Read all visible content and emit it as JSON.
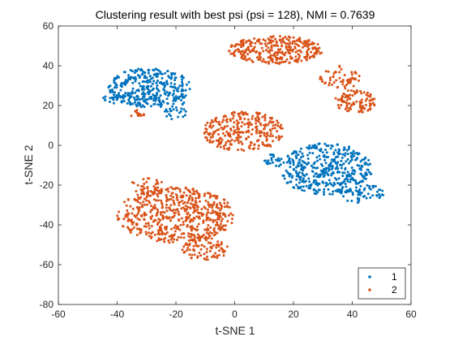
{
  "chart_data": {
    "type": "scatter",
    "title": "Clustering result with best psi (psi = 128), NMI = 0.7639",
    "xlabel": "t-SNE 1",
    "ylabel": "t-SNE 2",
    "xlim": [
      -60,
      60
    ],
    "ylim": [
      -80,
      60
    ],
    "xticks": [
      "-60",
      "-40",
      "-20",
      "0",
      "20",
      "40",
      "60"
    ],
    "yticks": [
      "-80",
      "-60",
      "-40",
      "-20",
      "0",
      "20",
      "40",
      "60"
    ],
    "grid": false,
    "legend_position": "bottom-right",
    "series": [
      {
        "name": "1",
        "color": "#0072BD",
        "clusters": [
          {
            "cx": -29,
            "cy": 29,
            "rx": 14,
            "ry": 10,
            "n": 340
          },
          {
            "cx": -20,
            "cy": 18,
            "rx": 4,
            "ry": 6,
            "n": 30
          },
          {
            "cx": -41,
            "cy": 24,
            "rx": 4,
            "ry": 3,
            "n": 20
          },
          {
            "cx": 31,
            "cy": -12,
            "rx": 16,
            "ry": 13,
            "n": 420
          },
          {
            "cx": 43,
            "cy": -24,
            "rx": 8,
            "ry": 5,
            "n": 60
          },
          {
            "cx": 13,
            "cy": -8,
            "rx": 3,
            "ry": 4,
            "n": 25
          }
        ]
      },
      {
        "name": "2",
        "color": "#D95319",
        "clusters": [
          {
            "cx": 14,
            "cy": 48,
            "rx": 16,
            "ry": 7,
            "n": 300
          },
          {
            "cx": 36,
            "cy": 34,
            "rx": 7,
            "ry": 6,
            "n": 60
          },
          {
            "cx": 41,
            "cy": 22,
            "rx": 7,
            "ry": 6,
            "n": 100
          },
          {
            "cx": 3,
            "cy": 7,
            "rx": 14,
            "ry": 10,
            "n": 280
          },
          {
            "cx": -20,
            "cy": -35,
            "rx": 20,
            "ry": 14,
            "n": 560
          },
          {
            "cx": -10,
            "cy": -52,
            "rx": 8,
            "ry": 6,
            "n": 90
          },
          {
            "cx": -30,
            "cy": -20,
            "rx": 6,
            "ry": 4,
            "n": 30
          },
          {
            "cx": -33,
            "cy": 16,
            "rx": 3,
            "ry": 2,
            "n": 15
          }
        ]
      }
    ]
  }
}
